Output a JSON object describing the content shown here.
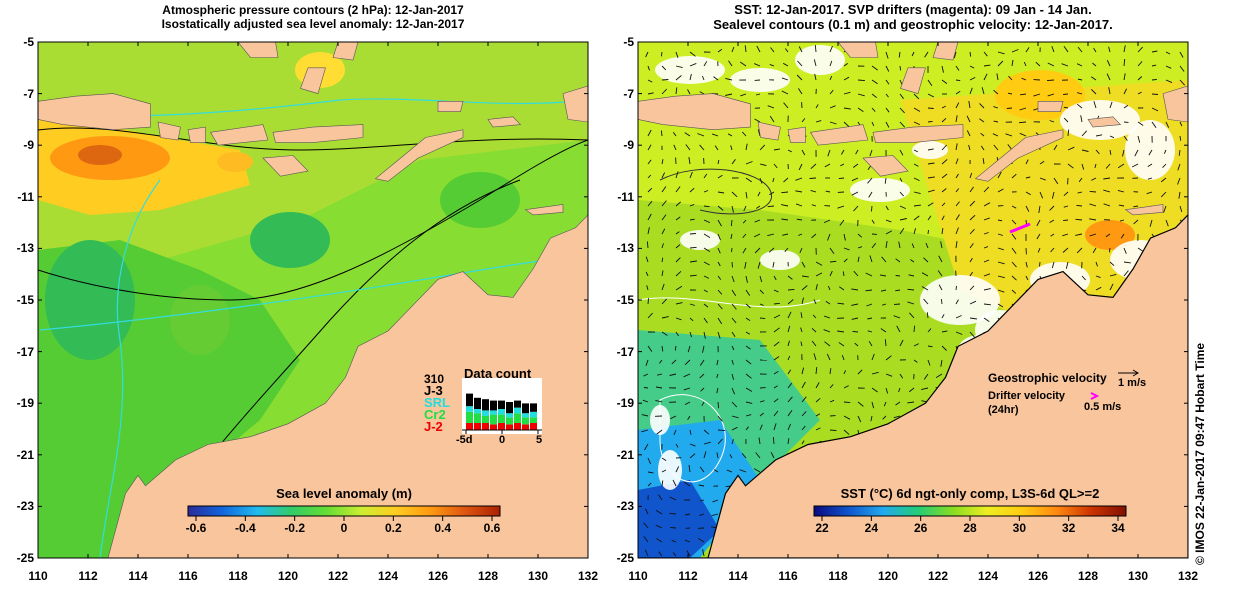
{
  "left_panel": {
    "title_line1": "Atmospheric pressure contours (2 hPa): 12-Jan-2017",
    "title_line2": "Isostatically adjusted sea level anomaly: 12-Jan-2017",
    "colorbar": {
      "label": "Sea level anomaly (m)",
      "ticks": [
        "-0.6",
        "-0.4",
        "-0.2",
        "0",
        "0.2",
        "0.4",
        "0.6"
      ]
    },
    "data_count": {
      "title": "Data count",
      "number": "310",
      "missions": [
        {
          "name": "J-3",
          "color": "#000000"
        },
        {
          "name": "SRL",
          "color": "#22dddd"
        },
        {
          "name": "Cr2",
          "color": "#22dd44"
        },
        {
          "name": "J-2",
          "color": "#ee0000"
        }
      ],
      "axis_ticks": [
        "-5d",
        "0",
        "5"
      ]
    }
  },
  "right_panel": {
    "title_line1": "SST: 12-Jan-2017. SVP drifters (magenta): 09 Jan - 14 Jan.",
    "title_line2": "Sealevel contours (0.1 m) and geostrophic velocity: 12-Jan-2017.",
    "legend": {
      "geostrophic_label": "Geostrophic velocity",
      "geostrophic_scale": "1 m/s",
      "drifter_label": "Drifter velocity",
      "drifter_sub": "(24hr)",
      "drifter_scale": "0.5 m/s",
      "drifter_color": "#ff00ff"
    },
    "colorbar": {
      "label": "SST (°C) 6d ngt-only comp, L3S-6d QL>=2",
      "ticks": [
        "22",
        "24",
        "26",
        "28",
        "30",
        "32",
        "34"
      ]
    }
  },
  "axes": {
    "lat_ticks": [
      "-5",
      "-7",
      "-9",
      "-11",
      "-13",
      "-15",
      "-17",
      "-19",
      "-21",
      "-23",
      "-25"
    ],
    "lon_ticks": [
      "110",
      "112",
      "114",
      "116",
      "118",
      "120",
      "122",
      "124",
      "126",
      "128",
      "130",
      "132"
    ]
  },
  "credit": "© IMOS 22-Jan-2017 09:47 Hobart Time",
  "colors": {
    "land": "#f9c59c",
    "sla_ramp": [
      "#2a2a9a",
      "#1166dd",
      "#22bbee",
      "#33cc66",
      "#66dd33",
      "#ccee33",
      "#ffcc22",
      "#ff9911",
      "#dd5511",
      "#aa2200"
    ],
    "sst_ramp": [
      "#0a0a80",
      "#1055cc",
      "#22aaee",
      "#22cc77",
      "#88dd22",
      "#eeee22",
      "#ffcc11",
      "#ff8811",
      "#cc3300",
      "#801000"
    ]
  }
}
